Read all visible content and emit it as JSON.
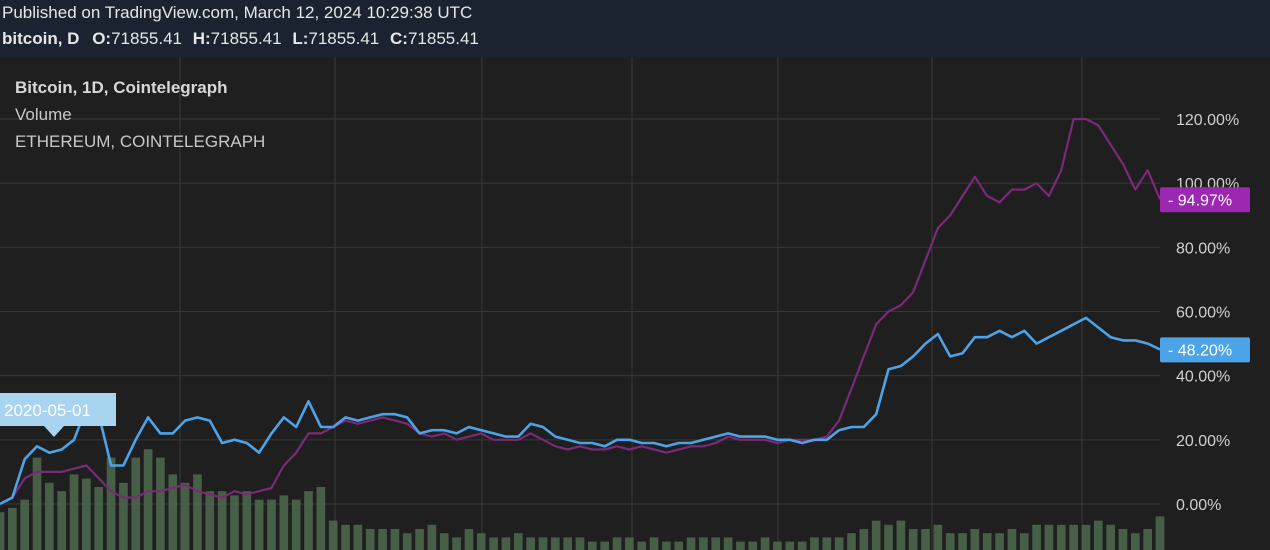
{
  "header": {
    "published": "Published on TradingView.com, March 12, 2024 10:29:38 UTC",
    "symbol": "bitcoin, D",
    "ohlc": [
      {
        "label": "O:",
        "value": "71855.41"
      },
      {
        "label": "H:",
        "value": "71855.41"
      },
      {
        "label": "L:",
        "value": "71855.41"
      },
      {
        "label": "C:",
        "value": "71855.41"
      }
    ]
  },
  "legend": {
    "main": "Bitcoin, 1D, Cointelegraph",
    "volume": "Volume",
    "compare": "ETHEREUM, COINTELEGRAPH"
  },
  "colors": {
    "background": "#1f1f1f",
    "header_bg": "#1c2330",
    "bitcoin": "#4da3e8",
    "ethereum": "#7a2a78",
    "volume": "#4e6b4e",
    "eth_badge": "#9c27b0",
    "btc_badge": "#4da3e8"
  },
  "chart_data": {
    "type": "line",
    "yaxis": {
      "ticks": [
        "0.00%",
        "20.00%",
        "40.00%",
        "60.00%",
        "80.00%",
        "100.00%",
        "120.00%"
      ],
      "tick_values": [
        0,
        20,
        40,
        60,
        80,
        100,
        120
      ],
      "range": [
        -14,
        135
      ],
      "position": "right"
    },
    "grid": true,
    "series": [
      {
        "name": "Bitcoin, 1D, Cointelegraph",
        "color": "#4da3e8",
        "last_label": "48.20%",
        "values": [
          0,
          2,
          14,
          18,
          16,
          17,
          20,
          30,
          28,
          12,
          12,
          20,
          27,
          22,
          22,
          26,
          27,
          26,
          19,
          20,
          19,
          16,
          22,
          27,
          24,
          32,
          24,
          24,
          27,
          26,
          27,
          28,
          28,
          27,
          22,
          23,
          23,
          22,
          24,
          23,
          22,
          21,
          21,
          25,
          24,
          21,
          20,
          19,
          19,
          18,
          20,
          20,
          19,
          19,
          18,
          19,
          19,
          20,
          21,
          22,
          21,
          21,
          21,
          20,
          20,
          19,
          20,
          20,
          23,
          24,
          24,
          28,
          42,
          43,
          46,
          50,
          53,
          46,
          47,
          52,
          52,
          54,
          52,
          54,
          50,
          52,
          54,
          56,
          58,
          55,
          52,
          51,
          51,
          50,
          48.2
        ]
      },
      {
        "name": "ETHEREUM, COINTELEGRAPH",
        "color": "#7a2a78",
        "last_label": "94.97%",
        "values": [
          0,
          2,
          8,
          10,
          10,
          10,
          11,
          12,
          8,
          4,
          2,
          2,
          4,
          4,
          5,
          6,
          4,
          3,
          2,
          4,
          3,
          4,
          5,
          12,
          16,
          22,
          22,
          24,
          26,
          25,
          26,
          27,
          26,
          25,
          22,
          21,
          22,
          20,
          21,
          22,
          20,
          20,
          20,
          22,
          20,
          18,
          17,
          18,
          17,
          17,
          18,
          17,
          18,
          17,
          16,
          17,
          18,
          18,
          19,
          21,
          20,
          20,
          20,
          19,
          20,
          20,
          20,
          21,
          26,
          36,
          46,
          56,
          60,
          62,
          66,
          76,
          86,
          90,
          96,
          102,
          96,
          94,
          98,
          98,
          100,
          96,
          104,
          120,
          120,
          118,
          112,
          106,
          98,
          104,
          94.97
        ]
      },
      {
        "name": "Volume",
        "color": "#4e6b4e",
        "values": [
          9,
          10,
          12,
          22,
          16,
          14,
          18,
          17,
          15,
          22,
          16,
          22,
          24,
          22,
          18,
          16,
          18,
          14,
          14,
          13,
          14,
          12,
          12,
          13,
          12,
          14,
          15,
          7,
          6,
          6,
          5,
          5,
          5,
          4,
          5,
          6,
          4,
          3,
          5,
          4,
          3,
          3,
          4,
          3,
          3,
          3,
          3,
          3,
          2,
          2,
          3,
          3,
          2,
          3,
          2,
          2,
          3,
          3,
          3,
          3,
          2,
          2,
          3,
          2,
          2,
          2,
          3,
          3,
          3,
          4,
          5,
          7,
          6,
          7,
          5,
          5,
          6,
          4,
          4,
          5,
          4,
          4,
          5,
          4,
          6,
          6,
          6,
          6,
          6,
          7,
          6,
          5,
          4,
          5,
          8
        ]
      }
    ],
    "annotations": [
      {
        "text": "2020-05-01",
        "type": "date-marker"
      }
    ]
  }
}
